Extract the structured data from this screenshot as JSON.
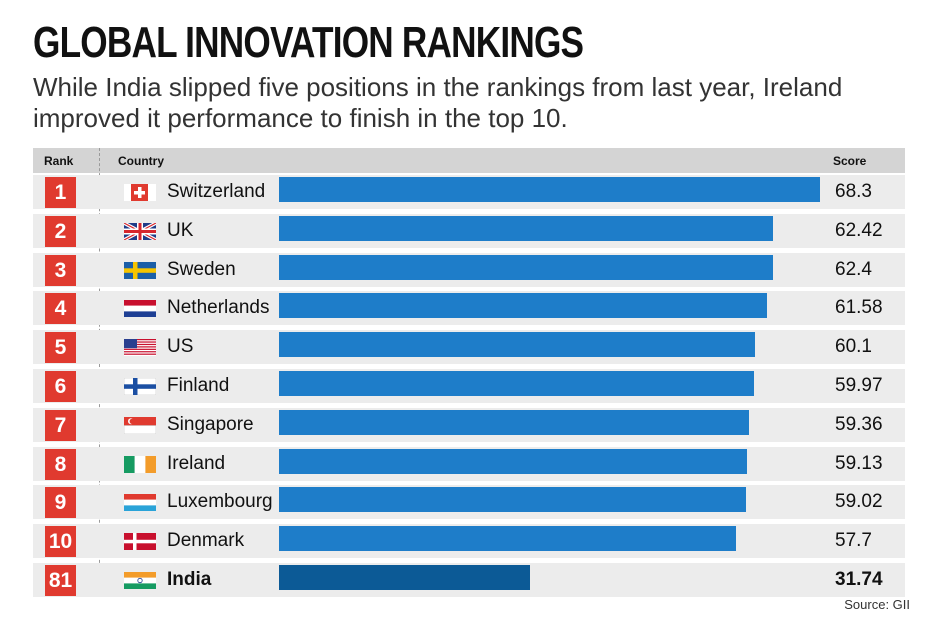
{
  "title": "GLOBAL INNOVATION RANKINGS",
  "subtitle": "While India slipped five positions in the rankings from last year, Ireland improved it performance to finish in the top 10.",
  "header": {
    "rank": "Rank",
    "country": "Country",
    "score": "Score"
  },
  "source": "Source: GII",
  "colors": {
    "rank_badge": "#e03a2f",
    "bar": "#1e7dc9",
    "bar_highlight": "#0c5a96"
  },
  "chart_data": {
    "type": "bar",
    "orientation": "horizontal",
    "title": "GLOBAL INNOVATION RANKINGS",
    "categories": [
      "Switzerland",
      "UK",
      "Sweden",
      "Netherlands",
      "US",
      "Finland",
      "Singapore",
      "Ireland",
      "Luxembourg",
      "Denmark",
      "India"
    ],
    "ranks": [
      "1",
      "2",
      "3",
      "4",
      "5",
      "6",
      "7",
      "8",
      "9",
      "10",
      "81"
    ],
    "flags": [
      "switzerland-flag-icon",
      "uk-flag-icon",
      "sweden-flag-icon",
      "netherlands-flag-icon",
      "us-flag-icon",
      "finland-flag-icon",
      "singapore-flag-icon",
      "ireland-flag-icon",
      "luxembourg-flag-icon",
      "denmark-flag-icon",
      "india-flag-icon"
    ],
    "values": [
      68.3,
      62.42,
      62.4,
      61.58,
      60.1,
      59.97,
      59.36,
      59.13,
      59.02,
      57.7,
      31.74
    ],
    "labels": [
      "68.3",
      "62.42",
      "62.4",
      "61.58",
      "60.1",
      "59.97",
      "59.36",
      "59.13",
      "59.02",
      "57.7",
      "31.74"
    ],
    "highlight": "India",
    "xlim": [
      0,
      70
    ],
    "grid": false
  }
}
